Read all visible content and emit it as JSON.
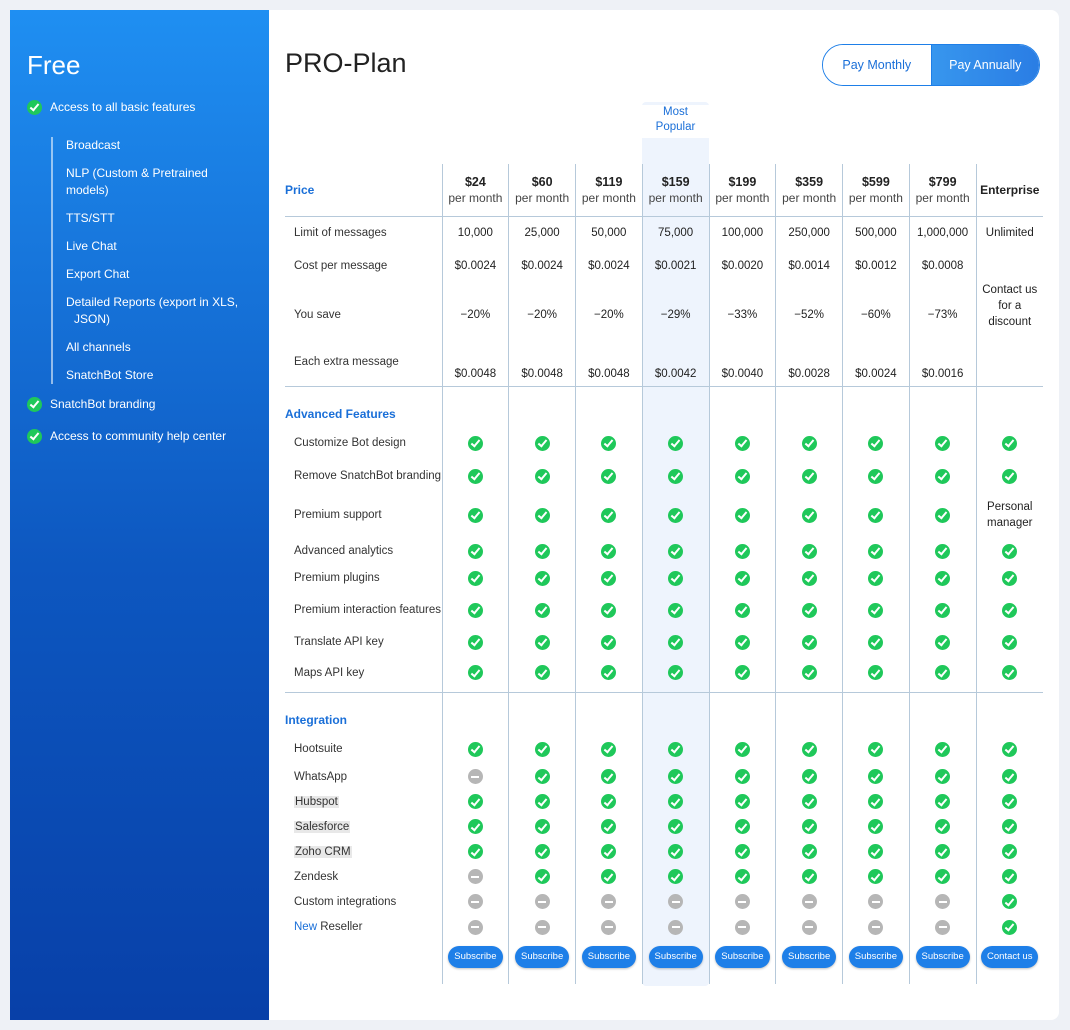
{
  "free": {
    "title": "Free",
    "basic": "Access to all basic features",
    "sub_items": [
      "Broadcast",
      "NLP (Custom & Pretrained models)",
      "TTS/STT",
      "Live Chat",
      "Export Chat",
      "Detailed Reports (export in XLS,",
      "JSON)",
      "All channels",
      "SnatchBot Store"
    ],
    "branding": "SnatchBot branding",
    "community": "Access to community help center"
  },
  "pro": {
    "title": "PRO-Plan",
    "toggle_monthly": "Pay Monthly",
    "toggle_annually": "Pay Annually",
    "most_popular_1": "Most",
    "most_popular_2": "Popular"
  },
  "table": {
    "price_label": "Price",
    "prices": [
      "$24",
      "$60",
      "$119",
      "$159",
      "$199",
      "$359",
      "$599",
      "$799"
    ],
    "per_month": "per month",
    "enterprise": "Enterprise",
    "rows_limit": {
      "labels": [
        "Limit of messages",
        "Cost per message",
        "You save",
        "Each extra message"
      ],
      "limit": [
        "10,000",
        "25,000",
        "50,000",
        "75,000",
        "100,000",
        "250,000",
        "500,000",
        "1,000,000",
        "Unlimited"
      ],
      "cost": [
        "$0.0024",
        "$0.0024",
        "$0.0024",
        "$0.0021",
        "$0.0020",
        "$0.0014",
        "$0.0012",
        "$0.0008"
      ],
      "save": [
        "−20%",
        "−20%",
        "−20%",
        "−29%",
        "−33%",
        "−52%",
        "−60%",
        "−73%"
      ],
      "extra": [
        "$0.0048",
        "$0.0048",
        "$0.0048",
        "$0.0042",
        "$0.0040",
        "$0.0028",
        "$0.0024",
        "$0.0016"
      ],
      "contact_1": "Contact us",
      "contact_2": "for a",
      "contact_3": "discount"
    },
    "advanced_label": "Advanced Features",
    "advanced": [
      {
        "label": "Customize Bot design",
        "cells": [
          "check",
          "check",
          "check",
          "check",
          "check",
          "check",
          "check",
          "check",
          "check"
        ]
      },
      {
        "label": "Remove SnatchBot branding",
        "cells": [
          "check",
          "check",
          "check",
          "check",
          "check",
          "check",
          "check",
          "check",
          "check"
        ]
      },
      {
        "label": "Premium support",
        "cells": [
          "check",
          "check",
          "check",
          "check",
          "check",
          "check",
          "check",
          "check",
          "text"
        ]
      },
      {
        "label": "Advanced analytics",
        "cells": [
          "check",
          "check",
          "check",
          "check",
          "check",
          "check",
          "check",
          "check",
          "check"
        ]
      },
      {
        "label": "Premium plugins",
        "cells": [
          "check",
          "check",
          "check",
          "check",
          "check",
          "check",
          "check",
          "check",
          "check"
        ]
      },
      {
        "label": "Premium interaction features",
        "cells": [
          "check",
          "check",
          "check",
          "check",
          "check",
          "check",
          "check",
          "check",
          "check"
        ]
      },
      {
        "label": "Translate API key",
        "cells": [
          "check",
          "check",
          "check",
          "check",
          "check",
          "check",
          "check",
          "check",
          "check"
        ]
      },
      {
        "label": "Maps API key",
        "cells": [
          "check",
          "check",
          "check",
          "check",
          "check",
          "check",
          "check",
          "check",
          "check"
        ]
      }
    ],
    "personal_manager": "Personal manager",
    "integration_label": "Integration",
    "integration": [
      {
        "label": "Hootsuite",
        "cells": [
          "check",
          "check",
          "check",
          "check",
          "check",
          "check",
          "check",
          "check",
          "check"
        ]
      },
      {
        "label": "WhatsApp",
        "cells": [
          "minus",
          "check",
          "check",
          "check",
          "check",
          "check",
          "check",
          "check",
          "check"
        ]
      },
      {
        "label": "Hubspot",
        "cells": [
          "check",
          "check",
          "check",
          "check",
          "check",
          "check",
          "check",
          "check",
          "check"
        ]
      },
      {
        "label": "Salesforce",
        "cells": [
          "check",
          "check",
          "check",
          "check",
          "check",
          "check",
          "check",
          "check",
          "check"
        ]
      },
      {
        "label": "Zoho CRM",
        "cells": [
          "check",
          "check",
          "check",
          "check",
          "check",
          "check",
          "check",
          "check",
          "check"
        ]
      },
      {
        "label": "Zendesk",
        "cells": [
          "minus",
          "check",
          "check",
          "check",
          "check",
          "check",
          "check",
          "check",
          "check"
        ]
      },
      {
        "label": "Custom integrations",
        "cells": [
          "minus",
          "minus",
          "minus",
          "minus",
          "minus",
          "minus",
          "minus",
          "minus",
          "check"
        ]
      },
      {
        "label": "Reseller",
        "cells": [
          "minus",
          "minus",
          "minus",
          "minus",
          "minus",
          "minus",
          "minus",
          "minus",
          "check"
        ]
      }
    ],
    "new_tag": "New",
    "subscribe": "Subscribe",
    "contact": "Contact us",
    "icon_names": {
      "check": "check-circle-icon",
      "minus": "minus-circle-icon"
    },
    "accent_color": "#1e7fe8"
  }
}
